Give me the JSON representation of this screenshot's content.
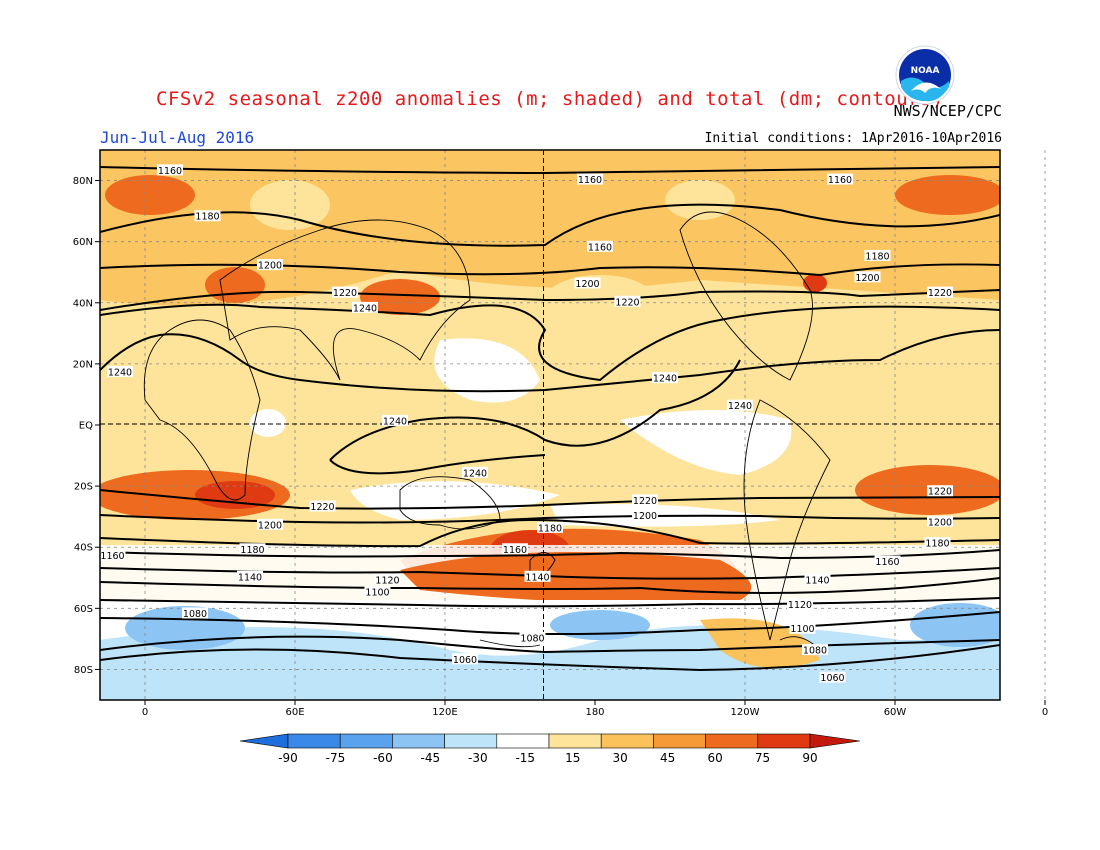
{
  "header": {
    "title": "CFSv2 seasonal z200 anomalies (m; shaded) and total (dm; contours)",
    "attribution": "NWS/NCEP/CPC",
    "season": "Jun-Jul-Aug 2016",
    "initial_conditions": "Initial conditions: 1Apr2016-10Apr2016",
    "logo_text": "NOAA"
  },
  "map": {
    "lat_ticks": [
      "80N",
      "60N",
      "40N",
      "20N",
      "EQ",
      "20S",
      "40S",
      "60S",
      "80S"
    ],
    "lon_ticks": [
      "0",
      "60E",
      "120E",
      "180",
      "120W",
      "60W",
      "0"
    ],
    "contour_labels": [
      {
        "text": "1160",
        "lon": 10,
        "lat": 83
      },
      {
        "text": "1160",
        "lon": 178,
        "lat": 80
      },
      {
        "text": "1160",
        "lon": 278,
        "lat": 80
      },
      {
        "text": "1160",
        "lon": 182,
        "lat": 58
      },
      {
        "text": "1180",
        "lon": 25,
        "lat": 68
      },
      {
        "text": "1180",
        "lon": 293,
        "lat": 55
      },
      {
        "text": "1200",
        "lon": 50,
        "lat": 52
      },
      {
        "text": "1200",
        "lon": 177,
        "lat": 46
      },
      {
        "text": "1200",
        "lon": 289,
        "lat": 48
      },
      {
        "text": "1220",
        "lon": 80,
        "lat": 43
      },
      {
        "text": "1220",
        "lon": 193,
        "lat": 40
      },
      {
        "text": "1220",
        "lon": 318,
        "lat": 43
      },
      {
        "text": "1240",
        "lon": 88,
        "lat": 38
      },
      {
        "text": "1240",
        "lon": -10,
        "lat": 17
      },
      {
        "text": "1240",
        "lon": 208,
        "lat": 15
      },
      {
        "text": "1240",
        "lon": 238,
        "lat": 6
      },
      {
        "text": "1240",
        "lon": 100,
        "lat": 1
      },
      {
        "text": "1240",
        "lon": 132,
        "lat": -16
      },
      {
        "text": "1220",
        "lon": 71,
        "lat": -27
      },
      {
        "text": "1220",
        "lon": 200,
        "lat": -25
      },
      {
        "text": "1220",
        "lon": 318,
        "lat": -22
      },
      {
        "text": "1200",
        "lon": 50,
        "lat": -33
      },
      {
        "text": "1200",
        "lon": 200,
        "lat": -30
      },
      {
        "text": "1200",
        "lon": 318,
        "lat": -32
      },
      {
        "text": "1180",
        "lon": 162,
        "lat": -34
      },
      {
        "text": "1180",
        "lon": 43,
        "lat": -41
      },
      {
        "text": "1180",
        "lon": 317,
        "lat": -39
      },
      {
        "text": "1160",
        "lon": -13,
        "lat": -43
      },
      {
        "text": "1160",
        "lon": 148,
        "lat": -41
      },
      {
        "text": "1160",
        "lon": 297,
        "lat": -45
      },
      {
        "text": "1140",
        "lon": 42,
        "lat": -50
      },
      {
        "text": "1140",
        "lon": 157,
        "lat": -50
      },
      {
        "text": "1140",
        "lon": 269,
        "lat": -51
      },
      {
        "text": "1120",
        "lon": 97,
        "lat": -51
      },
      {
        "text": "1120",
        "lon": 262,
        "lat": -59
      },
      {
        "text": "1100",
        "lon": 93,
        "lat": -55
      },
      {
        "text": "1100",
        "lon": 263,
        "lat": -67
      },
      {
        "text": "1080",
        "lon": 20,
        "lat": -62
      },
      {
        "text": "1080",
        "lon": 155,
        "lat": -70
      },
      {
        "text": "1080",
        "lon": 268,
        "lat": -74
      },
      {
        "text": "1060",
        "lon": 128,
        "lat": -77
      },
      {
        "text": "1060",
        "lon": 275,
        "lat": -83
      }
    ]
  },
  "colorbar": {
    "labels": [
      "-90",
      "-75",
      "-60",
      "-45",
      "-30",
      "-15",
      "15",
      "30",
      "45",
      "60",
      "75",
      "90"
    ],
    "colors": [
      "#1e6fdb",
      "#3a89e8",
      "#5aa2ee",
      "#8cc4f4",
      "#bde4f8",
      "#ffffff",
      "#fde49a",
      "#fbc25c",
      "#f59a36",
      "#ee6a1e",
      "#e03a12",
      "#c41a0e"
    ]
  }
}
